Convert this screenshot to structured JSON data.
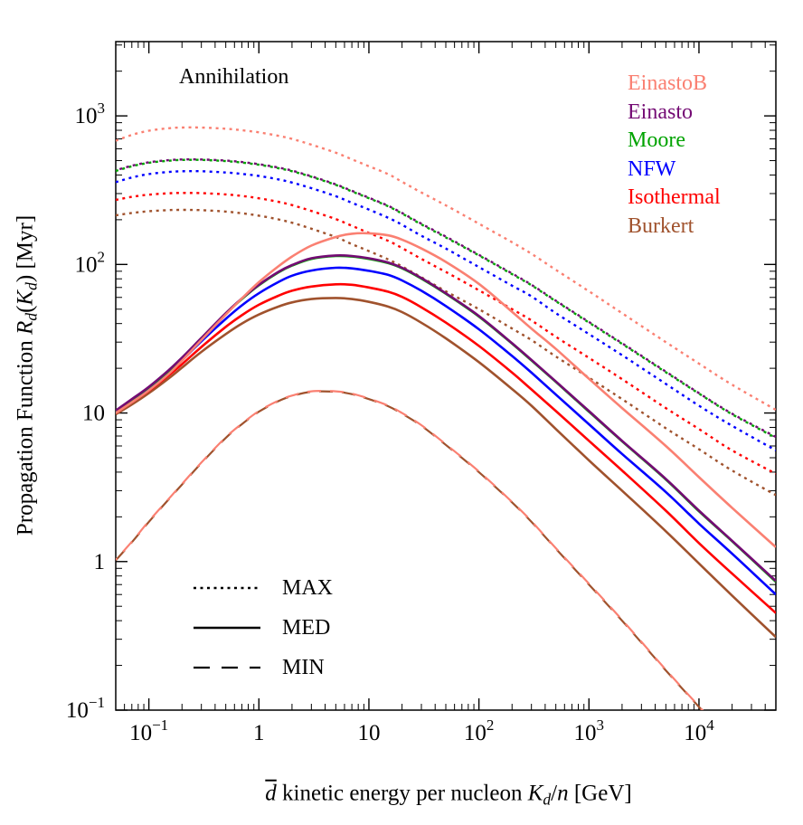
{
  "page": {
    "background": "#ffffff"
  },
  "chart_data": {
    "type": "line",
    "title_annotation": "Annihilation",
    "xlabel_plain": "d̄ kinetic energy per nucleon K_d/n [GeV]",
    "ylabel_plain": "Propagation Function R_d(K_d) [Myr]",
    "xlabel_parts": [
      {
        "text": "d",
        "style": "italic-overline"
      },
      {
        "text": " kinetic energy per nucleon ",
        "style": "plain"
      },
      {
        "text": "K",
        "style": "italic"
      },
      {
        "text": "d",
        "style": "sub"
      },
      {
        "text": "/",
        "style": "plain"
      },
      {
        "text": "n",
        "style": "italic"
      },
      {
        "text": " [GeV]",
        "style": "plain"
      }
    ],
    "ylabel_parts": [
      {
        "text": "Propagation Function ",
        "style": "plain"
      },
      {
        "text": "R",
        "style": "italic"
      },
      {
        "text": "d",
        "style": "sub"
      },
      {
        "text": "(",
        "style": "plain"
      },
      {
        "text": "K",
        "style": "italic"
      },
      {
        "text": "d",
        "style": "sub"
      },
      {
        "text": ") [Myr]",
        "style": "plain"
      }
    ],
    "x_scale": "log",
    "y_scale": "log",
    "xlim": [
      0.05,
      50000
    ],
    "ylim": [
      0.1,
      3162
    ],
    "grid": false,
    "frame_color": "#000000",
    "x_ticks": [
      {
        "v": 0.1,
        "base": "10",
        "exp": "−1"
      },
      {
        "v": 1,
        "base": "1"
      },
      {
        "v": 10,
        "base": "10"
      },
      {
        "v": 100,
        "base": "10",
        "exp": "2"
      },
      {
        "v": 1000,
        "base": "10",
        "exp": "3"
      },
      {
        "v": 10000,
        "base": "10",
        "exp": "4"
      }
    ],
    "y_ticks": [
      {
        "v": 0.1,
        "base": "10",
        "exp": "−1"
      },
      {
        "v": 1,
        "base": "1"
      },
      {
        "v": 10,
        "base": "10"
      },
      {
        "v": 100,
        "base": "10",
        "exp": "2"
      },
      {
        "v": 1000,
        "base": "10",
        "exp": "3"
      }
    ],
    "profile_legend": [
      {
        "label": "EinastoB",
        "color": "#FA8072"
      },
      {
        "label": "Einasto",
        "color": "#740B74"
      },
      {
        "label": "Moore",
        "color": "#00A300"
      },
      {
        "label": "NFW",
        "color": "#0000FF"
      },
      {
        "label": "Isothermal",
        "color": "#FF0000"
      },
      {
        "label": "Burkert",
        "color": "#A0522D"
      }
    ],
    "style_legend": [
      {
        "label": "MAX",
        "style": "dotted"
      },
      {
        "label": "MED",
        "style": "solid"
      },
      {
        "label": "MIN",
        "style": "long-dash"
      }
    ],
    "x": [
      0.05,
      0.07,
      0.1,
      0.15,
      0.2,
      0.3,
      0.5,
      0.7,
      1,
      1.5,
      2,
      3,
      5,
      7,
      10,
      15,
      20,
      30,
      50,
      100,
      200,
      300,
      500,
      1000,
      2000,
      5000,
      10000,
      20000,
      50000
    ],
    "series": [
      {
        "name": "Burkert MAX",
        "profile": "Burkert",
        "propagation": "MAX",
        "color": "#A0522D",
        "style": "dotted",
        "y": [
          214,
          222,
          228,
          232,
          233,
          232,
          227,
          221,
          213,
          201,
          191,
          174,
          153,
          137,
          123,
          108,
          97,
          82,
          66,
          50,
          37,
          31,
          24,
          17.3,
          12.4,
          7.9,
          5.7,
          4.1,
          2.8
        ]
      },
      {
        "name": "Isothermal MAX",
        "profile": "Isothermal",
        "propagation": "MAX",
        "color": "#FF0000",
        "style": "dotted",
        "y": [
          272,
          285,
          295,
          301,
          303,
          302,
          296,
          289,
          279,
          264,
          251,
          229,
          202,
          182,
          163,
          144,
          129,
          109,
          89,
          67,
          50,
          42,
          32.6,
          23.5,
          16.9,
          10.8,
          7.8,
          5.6,
          3.9
        ]
      },
      {
        "name": "NFW MAX",
        "profile": "NFW",
        "propagation": "MAX",
        "color": "#0000FF",
        "style": "dotted",
        "y": [
          358,
          385,
          406,
          419,
          424,
          424,
          416,
          407,
          394,
          374,
          356,
          326,
          288,
          260,
          234,
          206,
          185,
          156,
          128,
          96,
          72,
          61,
          47,
          34,
          24.5,
          15.7,
          11.2,
          8.2,
          5.6
        ]
      },
      {
        "name": "Moore MAX",
        "profile": "Moore",
        "propagation": "MAX",
        "color": "#00A300",
        "style": "dotted",
        "y": [
          426,
          458,
          483,
          499,
          505,
          505,
          496,
          485,
          469,
          445,
          424,
          389,
          343,
          310,
          279,
          246,
          220,
          186,
          152,
          115,
          86,
          72.5,
          56.5,
          40.6,
          29.2,
          18.8,
          13.5,
          9.8,
          6.8
        ]
      },
      {
        "name": "Einasto MAX",
        "profile": "Einasto",
        "propagation": "MAX",
        "color": "#740B74",
        "style": "dotted",
        "dash_offset": 3,
        "y": [
          430,
          462,
          487,
          503,
          509,
          509,
          500,
          489,
          473,
          449,
          428,
          392,
          346,
          313,
          281,
          248,
          222,
          188,
          154,
          116,
          87,
          73,
          57,
          41,
          29.5,
          19,
          13.6,
          9.9,
          6.9
        ]
      },
      {
        "name": "EinastoB MAX",
        "profile": "EinastoB",
        "propagation": "MAX",
        "color": "#FA8072",
        "style": "dotted",
        "y": [
          680,
          745,
          795,
          825,
          835,
          835,
          820,
          800,
          775,
          735,
          700,
          640,
          565,
          510,
          458,
          405,
          360,
          305,
          250,
          188,
          141,
          118,
          92,
          66,
          47,
          30,
          21.5,
          15.5,
          10.5
        ]
      },
      {
        "name": "Burkert MIN",
        "profile": "Burkert (all profiles coincide)",
        "propagation": "MIN",
        "color": "#A0522D",
        "style": "long-dash",
        "y": [
          1.02,
          1.35,
          1.85,
          2.6,
          3.3,
          4.6,
          6.8,
          8.4,
          10.2,
          12,
          13,
          13.9,
          13.9,
          13.4,
          12.4,
          11.1,
          9.9,
          8.2,
          6.1,
          4.0,
          2.5,
          1.85,
          1.22,
          0.7,
          0.4,
          0.185,
          0.105,
          0.06,
          0.03
        ]
      },
      {
        "name": "EinastoB MIN",
        "profile": "EinastoB (all profiles coincide)",
        "propagation": "MIN",
        "color": "#FA8072",
        "style": "long-dash",
        "dash_offset": 13,
        "y": [
          1.03,
          1.36,
          1.87,
          2.62,
          3.33,
          4.64,
          6.86,
          8.47,
          10.3,
          12.1,
          13.1,
          14,
          14,
          13.5,
          12.5,
          11.2,
          10,
          8.28,
          6.16,
          4.04,
          2.52,
          1.87,
          1.23,
          0.71,
          0.405,
          0.187,
          0.106,
          0.061,
          0.03
        ]
      },
      {
        "name": "Burkert MED",
        "profile": "Burkert",
        "propagation": "MED",
        "color": "#A0522D",
        "style": "solid",
        "y": [
          9.8,
          11.4,
          13.6,
          17,
          20.2,
          25.8,
          34,
          40,
          46,
          52,
          55.5,
          58.5,
          59.5,
          58.5,
          56,
          52,
          47.8,
          40.5,
          31.8,
          22,
          14.5,
          11.2,
          7.8,
          4.8,
          3.0,
          1.6,
          0.97,
          0.59,
          0.31
        ]
      },
      {
        "name": "Isothermal MED",
        "profile": "Isothermal",
        "propagation": "MED",
        "color": "#FF0000",
        "style": "solid",
        "y": [
          10,
          11.8,
          14.1,
          17.8,
          21.3,
          27.8,
          38,
          45.5,
          53.5,
          61.5,
          66.5,
          71,
          73.5,
          73,
          70,
          65.5,
          60.5,
          51.5,
          40.6,
          28.3,
          18.7,
          14.4,
          10.3,
          6.5,
          4.1,
          2.2,
          1.33,
          0.83,
          0.45
        ]
      },
      {
        "name": "NFW MED",
        "profile": "NFW",
        "propagation": "MED",
        "color": "#0000FF",
        "style": "solid",
        "y": [
          10.2,
          12.1,
          14.6,
          18.6,
          22.6,
          30.4,
          43,
          53,
          64,
          76,
          84,
          91,
          95,
          94,
          90.5,
          85,
          78,
          66.5,
          52.5,
          36.6,
          24.2,
          18.7,
          13.3,
          8.4,
          5.3,
          2.94,
          1.8,
          1.13,
          0.6
        ]
      },
      {
        "name": "Moore MED",
        "profile": "Moore",
        "propagation": "MED",
        "color": "#00A300",
        "style": "solid",
        "y": [
          10.3,
          12.3,
          14.9,
          19.1,
          23.4,
          31.7,
          46.6,
          58.5,
          72.5,
          88.3,
          98.2,
          109,
          114,
          113,
          109,
          102,
          94.2,
          80.3,
          63.5,
          44.6,
          29.3,
          22.6,
          16.2,
          10.2,
          6.45,
          3.57,
          2.18,
          1.37,
          0.73
        ]
      },
      {
        "name": "Einasto MED",
        "profile": "Einasto",
        "propagation": "MED",
        "color": "#740B74",
        "style": "solid",
        "y": [
          10.4,
          12.4,
          15,
          19.3,
          23.6,
          32,
          47,
          59,
          73,
          89,
          99,
          110,
          115,
          114,
          110,
          103,
          95,
          81,
          64,
          45,
          29.5,
          22.8,
          16.3,
          10.3,
          6.5,
          3.6,
          2.2,
          1.38,
          0.74
        ]
      },
      {
        "name": "EinastoB MED",
        "profile": "EinastoB",
        "propagation": "MED",
        "color": "#FA8072",
        "style": "solid",
        "y": [
          10,
          11.8,
          14.2,
          18.2,
          22.5,
          31,
          46,
          59,
          76,
          97,
          113,
          134,
          153,
          161,
          162,
          157,
          147,
          128,
          104,
          74,
          48,
          37,
          27,
          17,
          10.8,
          6.0,
          3.7,
          2.3,
          1.25
        ]
      }
    ]
  }
}
